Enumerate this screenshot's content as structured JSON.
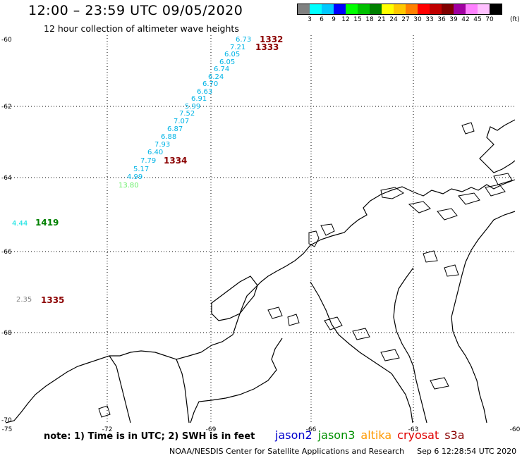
{
  "header": {
    "title": "12:00 – 23:59 UTC 09/05/2020",
    "subtitle": "12 hour collection of altimeter wave heights"
  },
  "legend": {
    "colors": [
      "#808080",
      "#00ffff",
      "#00c8ff",
      "#0000ff",
      "#00ff00",
      "#00c000",
      "#008000",
      "#ffff00",
      "#ffc800",
      "#ff8000",
      "#ff0000",
      "#c00000",
      "#800000",
      "#a000a0",
      "#ff80ff",
      "#ffc0ff",
      "#000000"
    ],
    "ticks": [
      "3",
      "6",
      "9",
      "12",
      "15",
      "18",
      "21",
      "24",
      "27",
      "30",
      "33",
      "36",
      "39",
      "42",
      "45",
      "70"
    ],
    "unit": "(ft)"
  },
  "axes": {
    "lat_labels": [
      "-60",
      "-62",
      "-64",
      "-66",
      "-68",
      "-70"
    ],
    "lon_labels": [
      "-75",
      "-72",
      "-69",
      "-66",
      "-63",
      "-60"
    ]
  },
  "observations": [
    {
      "text": "6.73",
      "color": "#00b4e6"
    },
    {
      "text": "7.21",
      "color": "#00b4e6"
    },
    {
      "text": "6.05",
      "color": "#00b4e6"
    },
    {
      "text": "6.05",
      "color": "#00b4e6"
    },
    {
      "text": "6.74",
      "color": "#00b4e6"
    },
    {
      "text": "6.24",
      "color": "#00b4e6"
    },
    {
      "text": "6.70",
      "color": "#00b4e6"
    },
    {
      "text": "6.63",
      "color": "#00b4e6"
    },
    {
      "text": "6.91",
      "color": "#00b4e6"
    },
    {
      "text": "5.99",
      "color": "#00b4e6"
    },
    {
      "text": "7.52",
      "color": "#00b4e6"
    },
    {
      "text": "7.07",
      "color": "#00b4e6"
    },
    {
      "text": "6.87",
      "color": "#00b4e6"
    },
    {
      "text": "6.88",
      "color": "#00b4e6"
    },
    {
      "text": "7.93",
      "color": "#00b4e6"
    },
    {
      "text": "6.40",
      "color": "#00b4e6"
    },
    {
      "text": "7.79",
      "color": "#00b4e6"
    },
    {
      "text": "5.17",
      "color": "#00b4e6"
    },
    {
      "text": "4.99",
      "color": "#00b4e6"
    },
    {
      "text": "13.80",
      "color": "#66ee66"
    },
    {
      "text": "4.44",
      "color": "#00e0e0"
    },
    {
      "text": "2.35",
      "color": "#808080"
    }
  ],
  "passes": [
    {
      "text": "1332",
      "color": "#8b0000"
    },
    {
      "text": "1333",
      "color": "#8b0000"
    },
    {
      "text": "1334",
      "color": "#8b0000"
    },
    {
      "text": "1419",
      "color": "#008000"
    },
    {
      "text": "1335",
      "color": "#8b0000"
    }
  ],
  "footer": {
    "note": "note: 1) Time is in UTC; 2) SWH is in feet",
    "satellites": [
      {
        "name": "jason2",
        "color": "#0000cc"
      },
      {
        "name": "jason3",
        "color": "#009000"
      },
      {
        "name": "altika",
        "color": "#ff9900"
      },
      {
        "name": "cryosat",
        "color": "#e00000"
      },
      {
        "name": "s3a",
        "color": "#8b0000"
      }
    ],
    "credit": "NOAA/NESDIS Center for Satellite Applications and Research",
    "timestamp": "Sep  6 12:28:54 UTC 2020"
  }
}
